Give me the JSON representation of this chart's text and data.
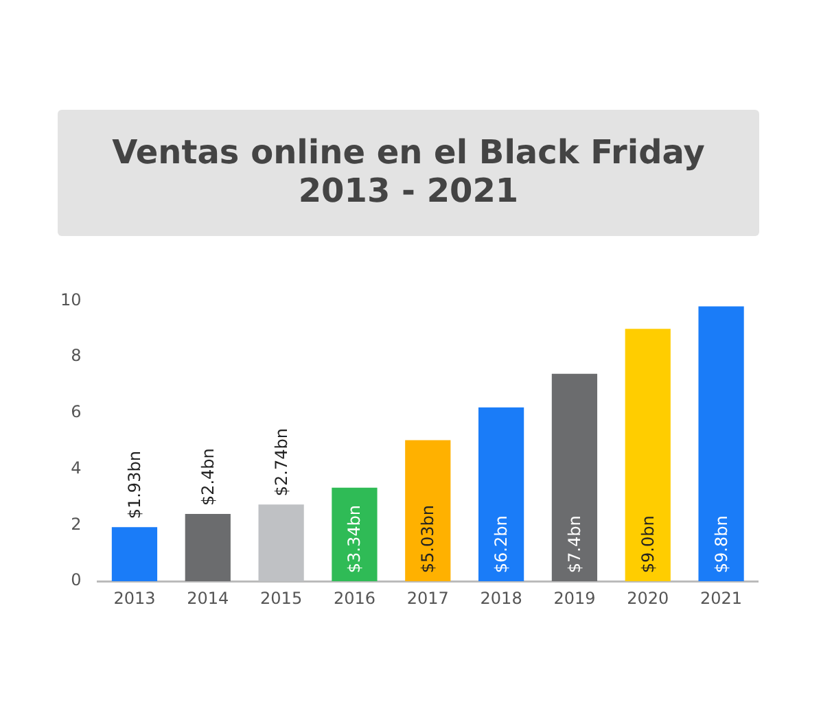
{
  "chart_data": {
    "type": "bar",
    "title": "Ventas online en el Black Friday\n2013 - 2021",
    "categories": [
      "2013",
      "2014",
      "2015",
      "2016",
      "2017",
      "2018",
      "2019",
      "2020",
      "2021"
    ],
    "values": [
      1.93,
      2.4,
      2.74,
      3.34,
      5.03,
      6.2,
      7.4,
      9.0,
      9.8
    ],
    "value_labels": [
      "$1.93bn",
      "$2.4bn",
      "$2.74bn",
      "$3.34bn",
      "$5.03bn",
      "$6.2bn",
      "$7.4bn",
      "$9.0bn",
      "$9.8bn"
    ],
    "colors": [
      "#1a7cf8",
      "#6b6c6e",
      "#bfc1c4",
      "#2fbb56",
      "#ffb100",
      "#1a7cf8",
      "#6b6c6e",
      "#ffcd00",
      "#1a7cf8"
    ],
    "ylim": [
      0,
      10
    ],
    "yticks": [
      0,
      2,
      4,
      6,
      8,
      10
    ],
    "grid": false
  }
}
